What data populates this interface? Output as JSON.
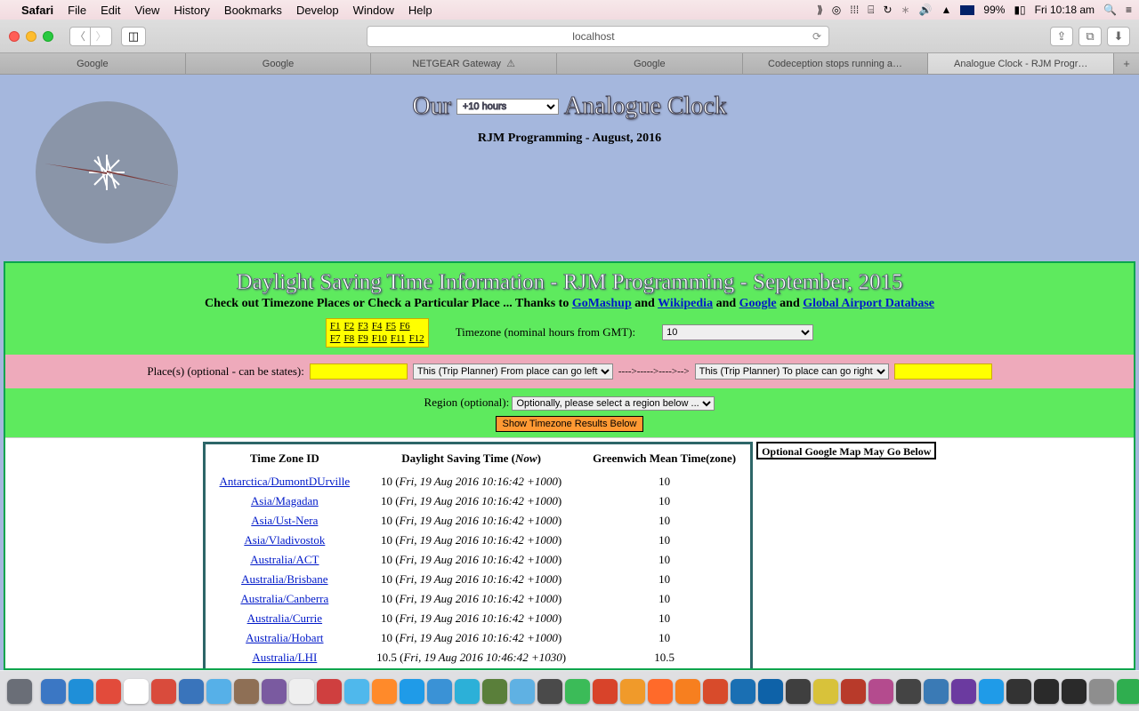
{
  "menubar": {
    "app": "Safari",
    "items": [
      "File",
      "Edit",
      "View",
      "History",
      "Bookmarks",
      "Develop",
      "Window",
      "Help"
    ],
    "battery": "99%",
    "clock": "Fri 10:18 am"
  },
  "toolbar": {
    "url": "localhost"
  },
  "tabs": [
    {
      "label": "Google"
    },
    {
      "label": "Google"
    },
    {
      "label": "NETGEAR Gateway",
      "warn": true
    },
    {
      "label": "Google"
    },
    {
      "label": "Codeception stops running a…"
    },
    {
      "label": "Analogue Clock - RJM Progr…",
      "active": true
    }
  ],
  "page": {
    "title_pre": "Our",
    "title_post": "Analogue Clock",
    "tz_select": "+10 hours",
    "subtitle": "RJM Programming - August, 2016"
  },
  "dst": {
    "title": "Daylight Saving Time Information - RJM Programming - September, 2015",
    "sub_pre": "Check out Timezone Places or Check a Particular Place ... Thanks to ",
    "link1": "GoMashup",
    "and1": " and ",
    "link2": "Wikipedia",
    "and2": " and ",
    "link3": "Google",
    "and3": " and ",
    "link4": "Global Airport Database",
    "fkeys1": [
      "F1",
      "F2",
      "F3",
      "F4",
      "F5",
      "F6"
    ],
    "fkeys2": [
      "F7",
      "F8",
      "F9",
      "F10",
      "F11",
      "F12"
    ],
    "tz_label": "Timezone (nominal hours from GMT):",
    "tz_value": "10",
    "places_label": "Place(s) (optional - can be states):",
    "from_sel": "This (Trip Planner) From place can go left",
    "arrows": "---->----->---->--> ",
    "to_sel": "This (Trip Planner) To place can go right",
    "region_label": "Region (optional):",
    "region_sel": "Optionally, please select a region below ...",
    "show_btn": "Show Timezone Results Below",
    "map_label": "Optional Google Map May Go Below",
    "table_headers": [
      "Time Zone ID",
      "Daylight Saving Time (",
      "Now",
      ")",
      "Greenwich Mean Time(zone)"
    ],
    "rows": [
      {
        "id": "Antarctica/DumontDUrville",
        "dst_n": "10",
        "dst_t": "Fri, 19 Aug 2016 10:16:42 +1000",
        "gmt": "10"
      },
      {
        "id": "Asia/Magadan",
        "dst_n": "10",
        "dst_t": "Fri, 19 Aug 2016 10:16:42 +1000",
        "gmt": "10"
      },
      {
        "id": "Asia/Ust-Nera",
        "dst_n": "10",
        "dst_t": "Fri, 19 Aug 2016 10:16:42 +1000",
        "gmt": "10"
      },
      {
        "id": "Asia/Vladivostok",
        "dst_n": "10",
        "dst_t": "Fri, 19 Aug 2016 10:16:42 +1000",
        "gmt": "10"
      },
      {
        "id": "Australia/ACT",
        "dst_n": "10",
        "dst_t": "Fri, 19 Aug 2016 10:16:42 +1000",
        "gmt": "10"
      },
      {
        "id": "Australia/Brisbane",
        "dst_n": "10",
        "dst_t": "Fri, 19 Aug 2016 10:16:42 +1000",
        "gmt": "10"
      },
      {
        "id": "Australia/Canberra",
        "dst_n": "10",
        "dst_t": "Fri, 19 Aug 2016 10:16:42 +1000",
        "gmt": "10"
      },
      {
        "id": "Australia/Currie",
        "dst_n": "10",
        "dst_t": "Fri, 19 Aug 2016 10:16:42 +1000",
        "gmt": "10"
      },
      {
        "id": "Australia/Hobart",
        "dst_n": "10",
        "dst_t": "Fri, 19 Aug 2016 10:16:42 +1000",
        "gmt": "10"
      },
      {
        "id": "Australia/LHI",
        "dst_n": "10.5",
        "dst_t": "Fri, 19 Aug 2016 10:46:42 +1030",
        "gmt": "10.5"
      }
    ]
  },
  "dock_colors": [
    "#6a6e77",
    "#3b77c4",
    "#1f8fd8",
    "#e24b3b",
    "#ffffff",
    "#d94b3c",
    "#3974bb",
    "#56b0e8",
    "#8e6f55",
    "#7a5aa0",
    "#efefef",
    "#cf3f3f",
    "#4fb8ec",
    "#ff8a2a",
    "#1f9be8",
    "#3a92d6",
    "#2cb0d8",
    "#5a7f3a",
    "#5fb1e3",
    "#4a4a4a",
    "#3bbb58",
    "#d8432a",
    "#f09a2a",
    "#ff6a2a",
    "#f77f1f",
    "#d84b2b",
    "#1a6fb3",
    "#0e62a8",
    "#3f3f3f",
    "#d8c23a",
    "#b83a2a",
    "#b44b8e",
    "#444",
    "#3a7ab5",
    "#6b3aa0",
    "#1f9be8",
    "#333",
    "#2a2a2a",
    "#2a2a2a",
    "#8e8e8e",
    "#2fae4f",
    "#4fa7d8",
    "#d8d8d8"
  ]
}
